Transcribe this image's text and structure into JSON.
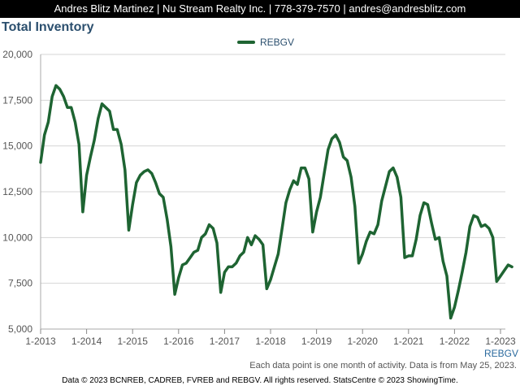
{
  "header": {
    "contact": "Andres Blitz Martinez | Nu Stream Realty Inc. | 778-379-7570 | andres@andresblitz.com"
  },
  "chart_data": {
    "type": "line",
    "title": "Total Inventory",
    "legend": [
      "REBGV"
    ],
    "legend_position": "top-center",
    "grid": true,
    "x_range_label": "REBGV",
    "ylim": [
      5000,
      20000
    ],
    "y_ticks": [
      "5,000",
      "7,500",
      "10,000",
      "12,500",
      "15,000",
      "17,500",
      "20,000"
    ],
    "x_ticks": [
      "1-2013",
      "1-2014",
      "1-2015",
      "1-2016",
      "1-2017",
      "1-2018",
      "1-2019",
      "1-2020",
      "1-2021",
      "1-2022",
      "1-2023"
    ],
    "start": "1-2013",
    "series": [
      {
        "name": "REBGV",
        "color": "#1e6432",
        "values": [
          14100,
          15600,
          16300,
          17700,
          18300,
          18100,
          17700,
          17100,
          17100,
          16300,
          15100,
          11400,
          13400,
          14400,
          15300,
          16500,
          17300,
          17100,
          16900,
          15900,
          15900,
          15100,
          13700,
          10400,
          11800,
          13000,
          13400,
          13600,
          13700,
          13500,
          13000,
          12400,
          12200,
          11000,
          9500,
          6900,
          7800,
          8500,
          8600,
          8900,
          9200,
          9300,
          10000,
          10200,
          10700,
          10500,
          9700,
          7000,
          8100,
          8400,
          8400,
          8600,
          9000,
          9200,
          10000,
          9600,
          10100,
          9900,
          9600,
          7200,
          7700,
          8400,
          9100,
          10500,
          11900,
          12600,
          13100,
          12900,
          13800,
          13800,
          13200,
          10300,
          11400,
          12200,
          13500,
          14800,
          15400,
          15600,
          15200,
          14400,
          14200,
          13300,
          11700,
          8600,
          9100,
          9800,
          10300,
          10200,
          10700,
          12000,
          12800,
          13600,
          13800,
          13300,
          12200,
          8900,
          9000,
          9000,
          9900,
          11200,
          11900,
          11800,
          10800,
          9900,
          10000,
          8700,
          7900,
          5600,
          6200,
          7100,
          8100,
          9200,
          10600,
          11200,
          11100,
          10600,
          10700,
          10500,
          10000,
          7600,
          7900,
          8200,
          8500,
          8400
        ]
      }
    ]
  },
  "note": "Each data point is one month of activity. Data is from May 25, 2023.",
  "footer": "Data © 2023 BCNREB, CADREB, FVREB and REBGV. All rights reserved. StatsCentre © 2023 ShowingTime."
}
